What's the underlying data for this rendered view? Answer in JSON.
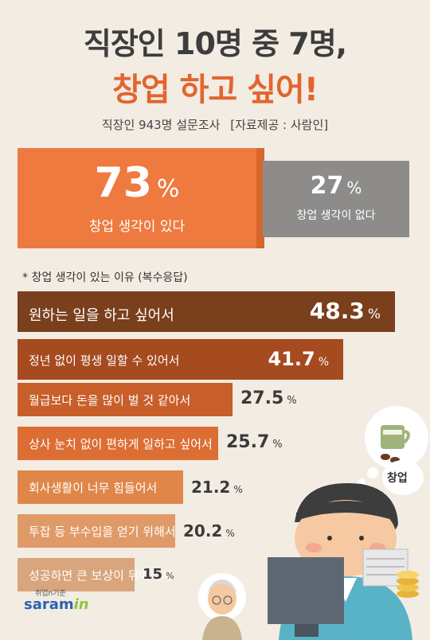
{
  "header": {
    "title_line1": "직장인 10명 중 7명,",
    "title_line2": "창업 하고 싶어!",
    "survey": "직장인 943명 설문조사",
    "source": "[자료제공 : 사람인]"
  },
  "summary": {
    "yes": {
      "value": "73",
      "unit": "%",
      "label": "창업 생각이 있다"
    },
    "no": {
      "value": "27",
      "unit": "%",
      "label": "창업 생각이 없다"
    }
  },
  "reasons_title": "* 창업 생각이 있는 이유 (복수응답)",
  "illustration": {
    "bubble_label": "창업"
  },
  "logo": {
    "small": "취업n기준",
    "main": "saram",
    "accent": "in"
  },
  "chart_data": {
    "type": "bar",
    "orientation": "horizontal",
    "categories": [
      "원하는 일을 하고 싶어서",
      "정년 없이 평생 일할 수 있어서",
      "월급보다 돈을 많이 벌 것 같아서",
      "상사 눈치 없이 편하게 일하고 싶어서",
      "회사생활이 너무 힘들어서",
      "투잡 등 부수입을 얻기 위해서",
      "성공하면 큰 보상이 뒤따라서"
    ],
    "values": [
      48.3,
      41.7,
      27.5,
      25.7,
      21.2,
      20.2,
      15
    ],
    "value_labels": [
      "48.3",
      "41.7",
      "27.5",
      "25.7",
      "21.2",
      "20.2",
      "15"
    ],
    "unit": "%",
    "colors": [
      "#7a3f1d",
      "#a64a1f",
      "#c85e2a",
      "#dc6e34",
      "#e08649",
      "#e09a68",
      "#d9a57c"
    ]
  }
}
